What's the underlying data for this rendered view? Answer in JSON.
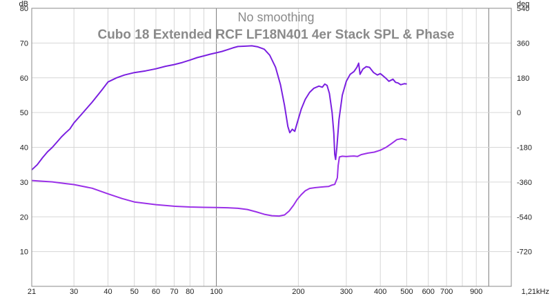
{
  "chart_data": {
    "type": "line",
    "title": "Cubo 18 Extended RCF LF18N401 4er Stack SPL & Phase",
    "subtitle": "No smoothing",
    "xscale": "log",
    "xlim": [
      21,
      1210
    ],
    "x_ticks": [
      {
        "value": 21,
        "label": "21"
      },
      {
        "value": 30,
        "label": "30"
      },
      {
        "value": 40,
        "label": "40"
      },
      {
        "value": 50,
        "label": "50"
      },
      {
        "value": 60,
        "label": "60"
      },
      {
        "value": 70,
        "label": "70"
      },
      {
        "value": 80,
        "label": "80"
      },
      {
        "value": 100,
        "label": "100"
      },
      {
        "value": 200,
        "label": "200"
      },
      {
        "value": 300,
        "label": "300"
      },
      {
        "value": 400,
        "label": "400"
      },
      {
        "value": 500,
        "label": "500"
      },
      {
        "value": 600,
        "label": "600"
      },
      {
        "value": 700,
        "label": "700"
      },
      {
        "value": 900,
        "label": "900"
      },
      {
        "value": 1210,
        "label": "1,21kHz"
      }
    ],
    "minor_x_gridlines": [
      90,
      800,
      1000
    ],
    "major_x_gridlines": [
      100,
      1000
    ],
    "y_left": {
      "unit": "dB",
      "ylim": [
        0,
        80
      ],
      "ticks": [
        10,
        20,
        30,
        40,
        50,
        60,
        70,
        80
      ]
    },
    "y_right": {
      "unit": "deg",
      "ylim": [
        -900,
        540
      ],
      "ticks": [
        -720,
        -540,
        -360,
        -180,
        0,
        180,
        360,
        540
      ]
    },
    "grid": true,
    "colors": {
      "spl": "#7a1fe0",
      "phase": "#9a2fe8",
      "grid": "#d6d6d6",
      "major_grid": "#7a7a7a"
    },
    "series": [
      {
        "key": "spl",
        "axis": "left",
        "values": [
          [
            21,
            33.5
          ],
          [
            22,
            35
          ],
          [
            23,
            37
          ],
          [
            24,
            38.7
          ],
          [
            25,
            40
          ],
          [
            26,
            41.5
          ],
          [
            27,
            43
          ],
          [
            28,
            44.2
          ],
          [
            29,
            45.3
          ],
          [
            30,
            47
          ],
          [
            32,
            49.5
          ],
          [
            35,
            53
          ],
          [
            38,
            56.5
          ],
          [
            40,
            58.8
          ],
          [
            43,
            60
          ],
          [
            46,
            60.8
          ],
          [
            50,
            61.5
          ],
          [
            55,
            62
          ],
          [
            60,
            62.6
          ],
          [
            65,
            63.3
          ],
          [
            70,
            63.8
          ],
          [
            75,
            64.4
          ],
          [
            80,
            65.1
          ],
          [
            85,
            65.8
          ],
          [
            90,
            66.3
          ],
          [
            95,
            66.8
          ],
          [
            100,
            67.2
          ],
          [
            105,
            67.6
          ],
          [
            110,
            68.1
          ],
          [
            115,
            68.6
          ],
          [
            120,
            69
          ],
          [
            128,
            69.1
          ],
          [
            135,
            69.2
          ],
          [
            142,
            68.9
          ],
          [
            150,
            68.2
          ],
          [
            157,
            66.5
          ],
          [
            165,
            63
          ],
          [
            172,
            58
          ],
          [
            178,
            52
          ],
          [
            183,
            46
          ],
          [
            186,
            44.2
          ],
          [
            190,
            45.2
          ],
          [
            194,
            44.6
          ],
          [
            198,
            47
          ],
          [
            205,
            51
          ],
          [
            212,
            53.8
          ],
          [
            220,
            55.8
          ],
          [
            228,
            57
          ],
          [
            238,
            57.6
          ],
          [
            245,
            57.3
          ],
          [
            250,
            58.2
          ],
          [
            255,
            57.8
          ],
          [
            260,
            55.5
          ],
          [
            266,
            50
          ],
          [
            270,
            44
          ],
          [
            272,
            38
          ],
          [
            274,
            36.5
          ],
          [
            277,
            40
          ],
          [
            282,
            48
          ],
          [
            290,
            55
          ],
          [
            300,
            59
          ],
          [
            310,
            61
          ],
          [
            320,
            61.8
          ],
          [
            328,
            63
          ],
          [
            333,
            64.2
          ],
          [
            337,
            61
          ],
          [
            345,
            62.5
          ],
          [
            355,
            63.2
          ],
          [
            365,
            63
          ],
          [
            378,
            61.5
          ],
          [
            390,
            60.8
          ],
          [
            400,
            61.2
          ],
          [
            410,
            60.5
          ],
          [
            420,
            59.8
          ],
          [
            430,
            59
          ],
          [
            445,
            59.6
          ],
          [
            455,
            58.7
          ],
          [
            465,
            58.5
          ],
          [
            475,
            58
          ],
          [
            490,
            58.3
          ],
          [
            500,
            58.2
          ]
        ]
      },
      {
        "key": "phase",
        "axis": "right",
        "values": [
          [
            21,
            -352
          ],
          [
            25,
            -359
          ],
          [
            28,
            -368
          ],
          [
            30,
            -373
          ],
          [
            35,
            -392
          ],
          [
            40,
            -421
          ],
          [
            45,
            -445
          ],
          [
            50,
            -463
          ],
          [
            60,
            -477
          ],
          [
            70,
            -485
          ],
          [
            80,
            -489
          ],
          [
            90,
            -491
          ],
          [
            100,
            -492
          ],
          [
            110,
            -493
          ],
          [
            120,
            -496
          ],
          [
            130,
            -502
          ],
          [
            140,
            -514
          ],
          [
            150,
            -527
          ],
          [
            160,
            -534
          ],
          [
            170,
            -536
          ],
          [
            178,
            -530
          ],
          [
            185,
            -510
          ],
          [
            192,
            -480
          ],
          [
            198,
            -450
          ],
          [
            205,
            -425
          ],
          [
            212,
            -405
          ],
          [
            220,
            -393
          ],
          [
            230,
            -389
          ],
          [
            240,
            -386
          ],
          [
            250,
            -384
          ],
          [
            258,
            -383
          ],
          [
            265,
            -376
          ],
          [
            272,
            -372
          ],
          [
            278,
            -338
          ],
          [
            280,
            -274
          ],
          [
            283,
            -230
          ],
          [
            290,
            -226
          ],
          [
            300,
            -228
          ],
          [
            310,
            -226
          ],
          [
            320,
            -225
          ],
          [
            330,
            -227
          ],
          [
            340,
            -218
          ],
          [
            360,
            -210
          ],
          [
            380,
            -205
          ],
          [
            400,
            -195
          ],
          [
            420,
            -180
          ],
          [
            440,
            -160
          ],
          [
            460,
            -140
          ],
          [
            480,
            -135
          ],
          [
            500,
            -142
          ]
        ]
      }
    ]
  }
}
